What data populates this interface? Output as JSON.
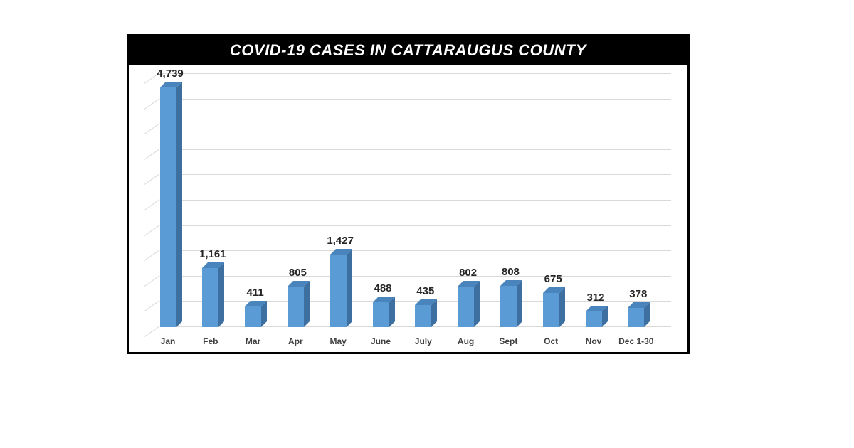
{
  "chart_data": {
    "type": "bar",
    "title": "COVID-19 CASES IN CATTARAUGUS COUNTY",
    "categories": [
      "Jan",
      "Feb",
      "Mar",
      "Apr",
      "May",
      "June",
      "July",
      "Aug",
      "Sept",
      "Oct",
      "Nov",
      "Dec 1-30"
    ],
    "values": [
      4739,
      1161,
      411,
      805,
      1427,
      488,
      435,
      802,
      808,
      675,
      312,
      378
    ],
    "value_labels": [
      "4,739",
      "1,161",
      "411",
      "805",
      "1,427",
      "488",
      "435",
      "802",
      "808",
      "675",
      "312",
      "378"
    ],
    "xlabel": "",
    "ylabel": "",
    "ylim": [
      0,
      5000
    ],
    "grid": true,
    "legend": null,
    "style": "3d-column",
    "bar_color": "#5b9bd5"
  }
}
